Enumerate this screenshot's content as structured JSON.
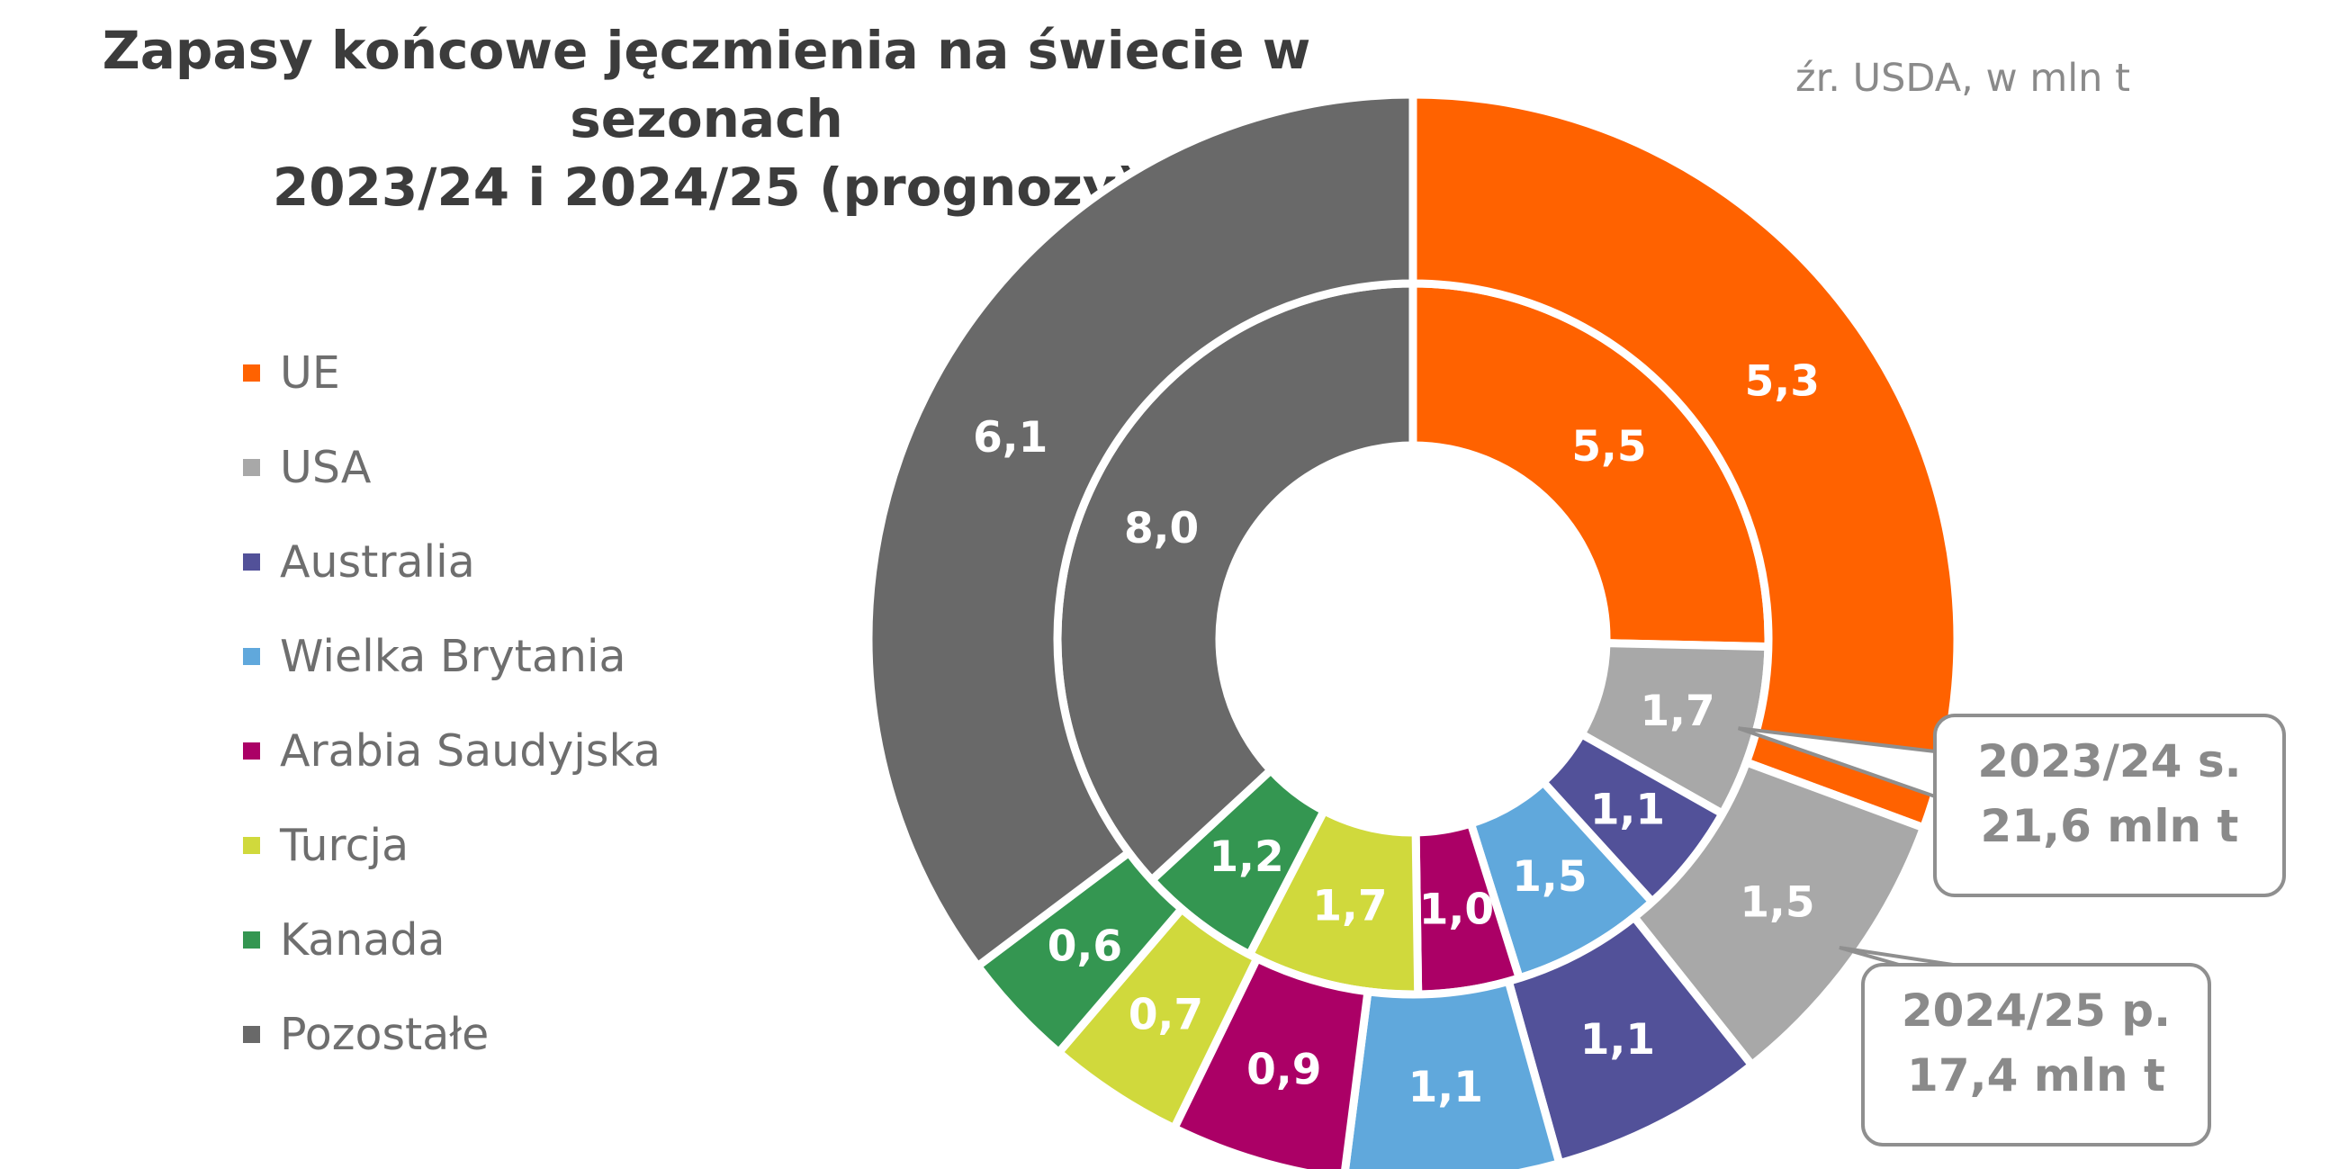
{
  "title_line1": "Zapasy końcowe jęczmienia na świecie w sezonach",
  "title_line2": "2023/24 i 2024/25 (prognozy)",
  "source": "źr. USDA, w mln t",
  "chart_data": {
    "type": "donut",
    "title": "Zapasy końcowe jęczmienia na świecie w sezonach 2023/24 i 2024/25 (prognozy)",
    "legend_position": "left",
    "categories": [
      "UE",
      "USA",
      "Australia",
      "Wielka Brytania",
      "Arabia Saudyjska",
      "Turcja",
      "Kanada",
      "Pozostałe"
    ],
    "colors": [
      "#FF6200",
      "#A8A8A8",
      "#525199",
      "#60A8DC",
      "#AB0066",
      "#D0D93C",
      "#349651",
      "#696969"
    ],
    "series": [
      {
        "ring": "inner",
        "values": [
          5.5,
          1.7,
          1.1,
          1.5,
          1.0,
          1.7,
          1.2,
          8.0
        ],
        "labels": [
          "5,5",
          "1,7",
          "1,1",
          "1,5",
          "1,0",
          "1,7",
          "1,2",
          "8,0"
        ],
        "callout": [
          "2023/24 s.",
          "21,6 mln t"
        ]
      },
      {
        "ring": "outer",
        "values": [
          5.3,
          1.5,
          1.1,
          1.1,
          0.9,
          0.7,
          0.6,
          6.1
        ],
        "labels": [
          "5,3",
          "1,5",
          "1,1",
          "1,1",
          "0,9",
          "0,7",
          "0,6",
          "6,1"
        ],
        "callout": [
          "2024/25 p.",
          "17,4 mln t"
        ]
      }
    ]
  }
}
